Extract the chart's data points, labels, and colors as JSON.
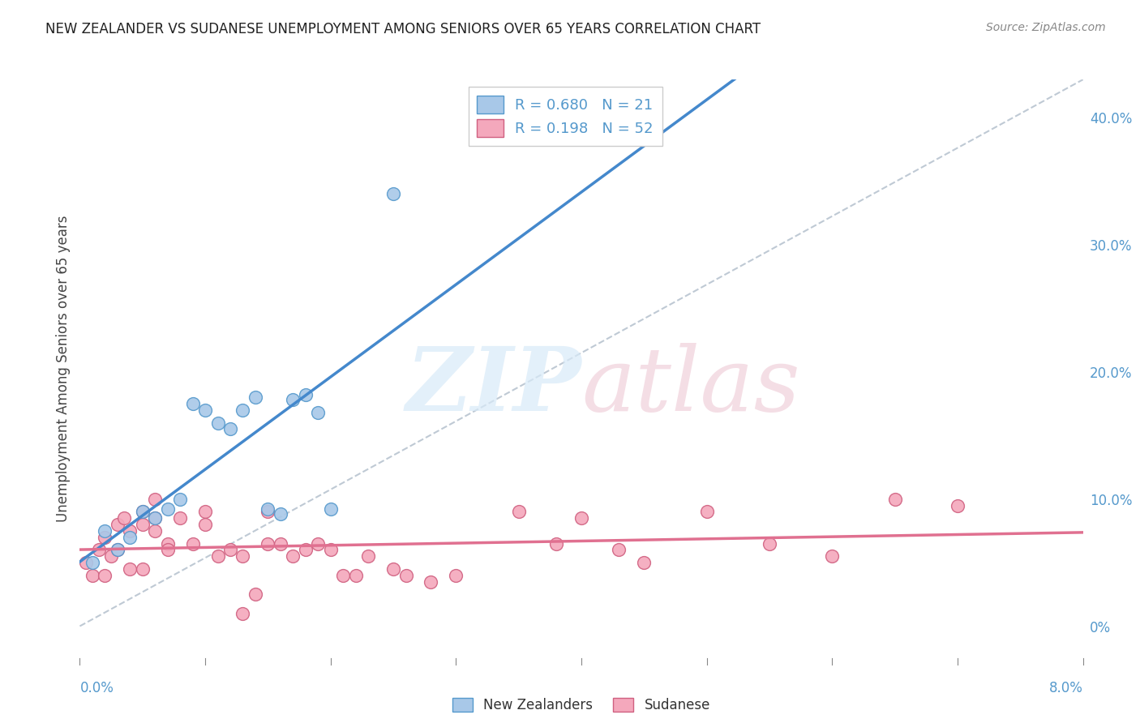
{
  "title": "NEW ZEALANDER VS SUDANESE UNEMPLOYMENT AMONG SENIORS OVER 65 YEARS CORRELATION CHART",
  "source": "Source: ZipAtlas.com",
  "ylabel": "Unemployment Among Seniors over 65 years",
  "legend_nz": {
    "R": 0.68,
    "N": 21
  },
  "legend_sud": {
    "R": 0.198,
    "N": 52
  },
  "nz_color": "#a8c8e8",
  "nz_edge_color": "#5599cc",
  "nz_line_color": "#4488cc",
  "sud_color": "#f4a8bc",
  "sud_edge_color": "#d06080",
  "sud_line_color": "#e07090",
  "diagonal_color": "#b8c4d0",
  "grid_color": "#d8dfe8",
  "title_color": "#222222",
  "source_color": "#888888",
  "tick_color": "#5599cc",
  "ylabel_right_vals": [
    0.0,
    0.1,
    0.2,
    0.3,
    0.4
  ],
  "xmin": 0.0,
  "xmax": 0.08,
  "ymin": -0.025,
  "ymax": 0.43,
  "background_color": "#ffffff",
  "nz_x": [
    0.001,
    0.002,
    0.003,
    0.004,
    0.005,
    0.006,
    0.007,
    0.008,
    0.009,
    0.01,
    0.011,
    0.012,
    0.013,
    0.014,
    0.015,
    0.016,
    0.017,
    0.018,
    0.019,
    0.02,
    0.025
  ],
  "nz_y": [
    0.05,
    0.075,
    0.06,
    0.07,
    0.09,
    0.085,
    0.092,
    0.1,
    0.175,
    0.17,
    0.16,
    0.155,
    0.17,
    0.18,
    0.092,
    0.088,
    0.178,
    0.182,
    0.168,
    0.092,
    0.34
  ],
  "sud_x": [
    0.0005,
    0.001,
    0.0015,
    0.002,
    0.002,
    0.0025,
    0.003,
    0.003,
    0.0035,
    0.004,
    0.004,
    0.005,
    0.005,
    0.005,
    0.006,
    0.006,
    0.006,
    0.007,
    0.007,
    0.008,
    0.009,
    0.01,
    0.01,
    0.011,
    0.012,
    0.013,
    0.013,
    0.014,
    0.015,
    0.015,
    0.016,
    0.017,
    0.018,
    0.019,
    0.02,
    0.021,
    0.022,
    0.023,
    0.025,
    0.026,
    0.028,
    0.03,
    0.035,
    0.038,
    0.04,
    0.043,
    0.045,
    0.05,
    0.055,
    0.06,
    0.065,
    0.07
  ],
  "sud_y": [
    0.05,
    0.04,
    0.06,
    0.07,
    0.04,
    0.055,
    0.06,
    0.08,
    0.085,
    0.045,
    0.075,
    0.09,
    0.08,
    0.045,
    0.1,
    0.085,
    0.075,
    0.065,
    0.06,
    0.085,
    0.065,
    0.09,
    0.08,
    0.055,
    0.06,
    0.055,
    0.01,
    0.025,
    0.09,
    0.065,
    0.065,
    0.055,
    0.06,
    0.065,
    0.06,
    0.04,
    0.04,
    0.055,
    0.045,
    0.04,
    0.035,
    0.04,
    0.09,
    0.065,
    0.085,
    0.06,
    0.05,
    0.09,
    0.065,
    0.055,
    0.1,
    0.095
  ]
}
